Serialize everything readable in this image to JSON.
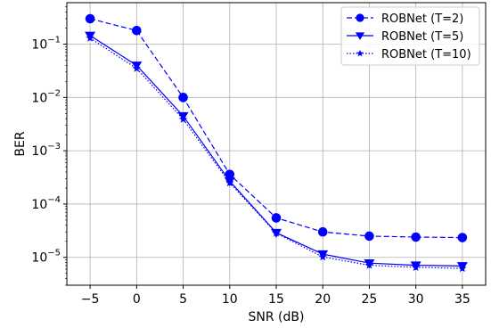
{
  "chart_data": {
    "type": "line",
    "title": "",
    "xlabel": "SNR (dB)",
    "ylabel": "BER",
    "yscale": "log",
    "xlim": [
      -7.5,
      37.5
    ],
    "ylim": [
      3e-06,
      0.6
    ],
    "x": [
      -5,
      0,
      5,
      10,
      15,
      20,
      25,
      30,
      35
    ],
    "x_tick_labels": [
      "−5",
      "0",
      "5",
      "10",
      "15",
      "20",
      "25",
      "30",
      "35"
    ],
    "y_ticks": [
      {
        "value": 0.1,
        "base": "10",
        "exp": "−1"
      },
      {
        "value": 0.01,
        "base": "10",
        "exp": "−2"
      },
      {
        "value": 0.001,
        "base": "10",
        "exp": "−3"
      },
      {
        "value": 0.0001,
        "base": "10",
        "exp": "−4"
      },
      {
        "value": 1e-05,
        "base": "10",
        "exp": "−5"
      }
    ],
    "grid": true,
    "legend_position": "top-right",
    "color": "#0000ff",
    "series": [
      {
        "name": "ROBNet (T=2)",
        "linestyle": "dashed",
        "marker": "circle",
        "values": [
          0.3,
          0.18,
          0.01,
          0.00036,
          5.5e-05,
          3e-05,
          2.5e-05,
          2.4e-05,
          2.35e-05
        ]
      },
      {
        "name": "ROBNet (T=5)",
        "linestyle": "solid",
        "marker": "triangle-down",
        "values": [
          0.145,
          0.04,
          0.0045,
          0.00027,
          2.9e-05,
          1.15e-05,
          7.8e-06,
          7.1e-06,
          6.9e-06
        ]
      },
      {
        "name": "ROBNet (T=10)",
        "linestyle": "dotted",
        "marker": "star",
        "values": [
          0.13,
          0.035,
          0.0039,
          0.00025,
          2.85e-05,
          1.02e-05,
          7.1e-06,
          6.5e-06,
          6.2e-06
        ]
      }
    ]
  }
}
